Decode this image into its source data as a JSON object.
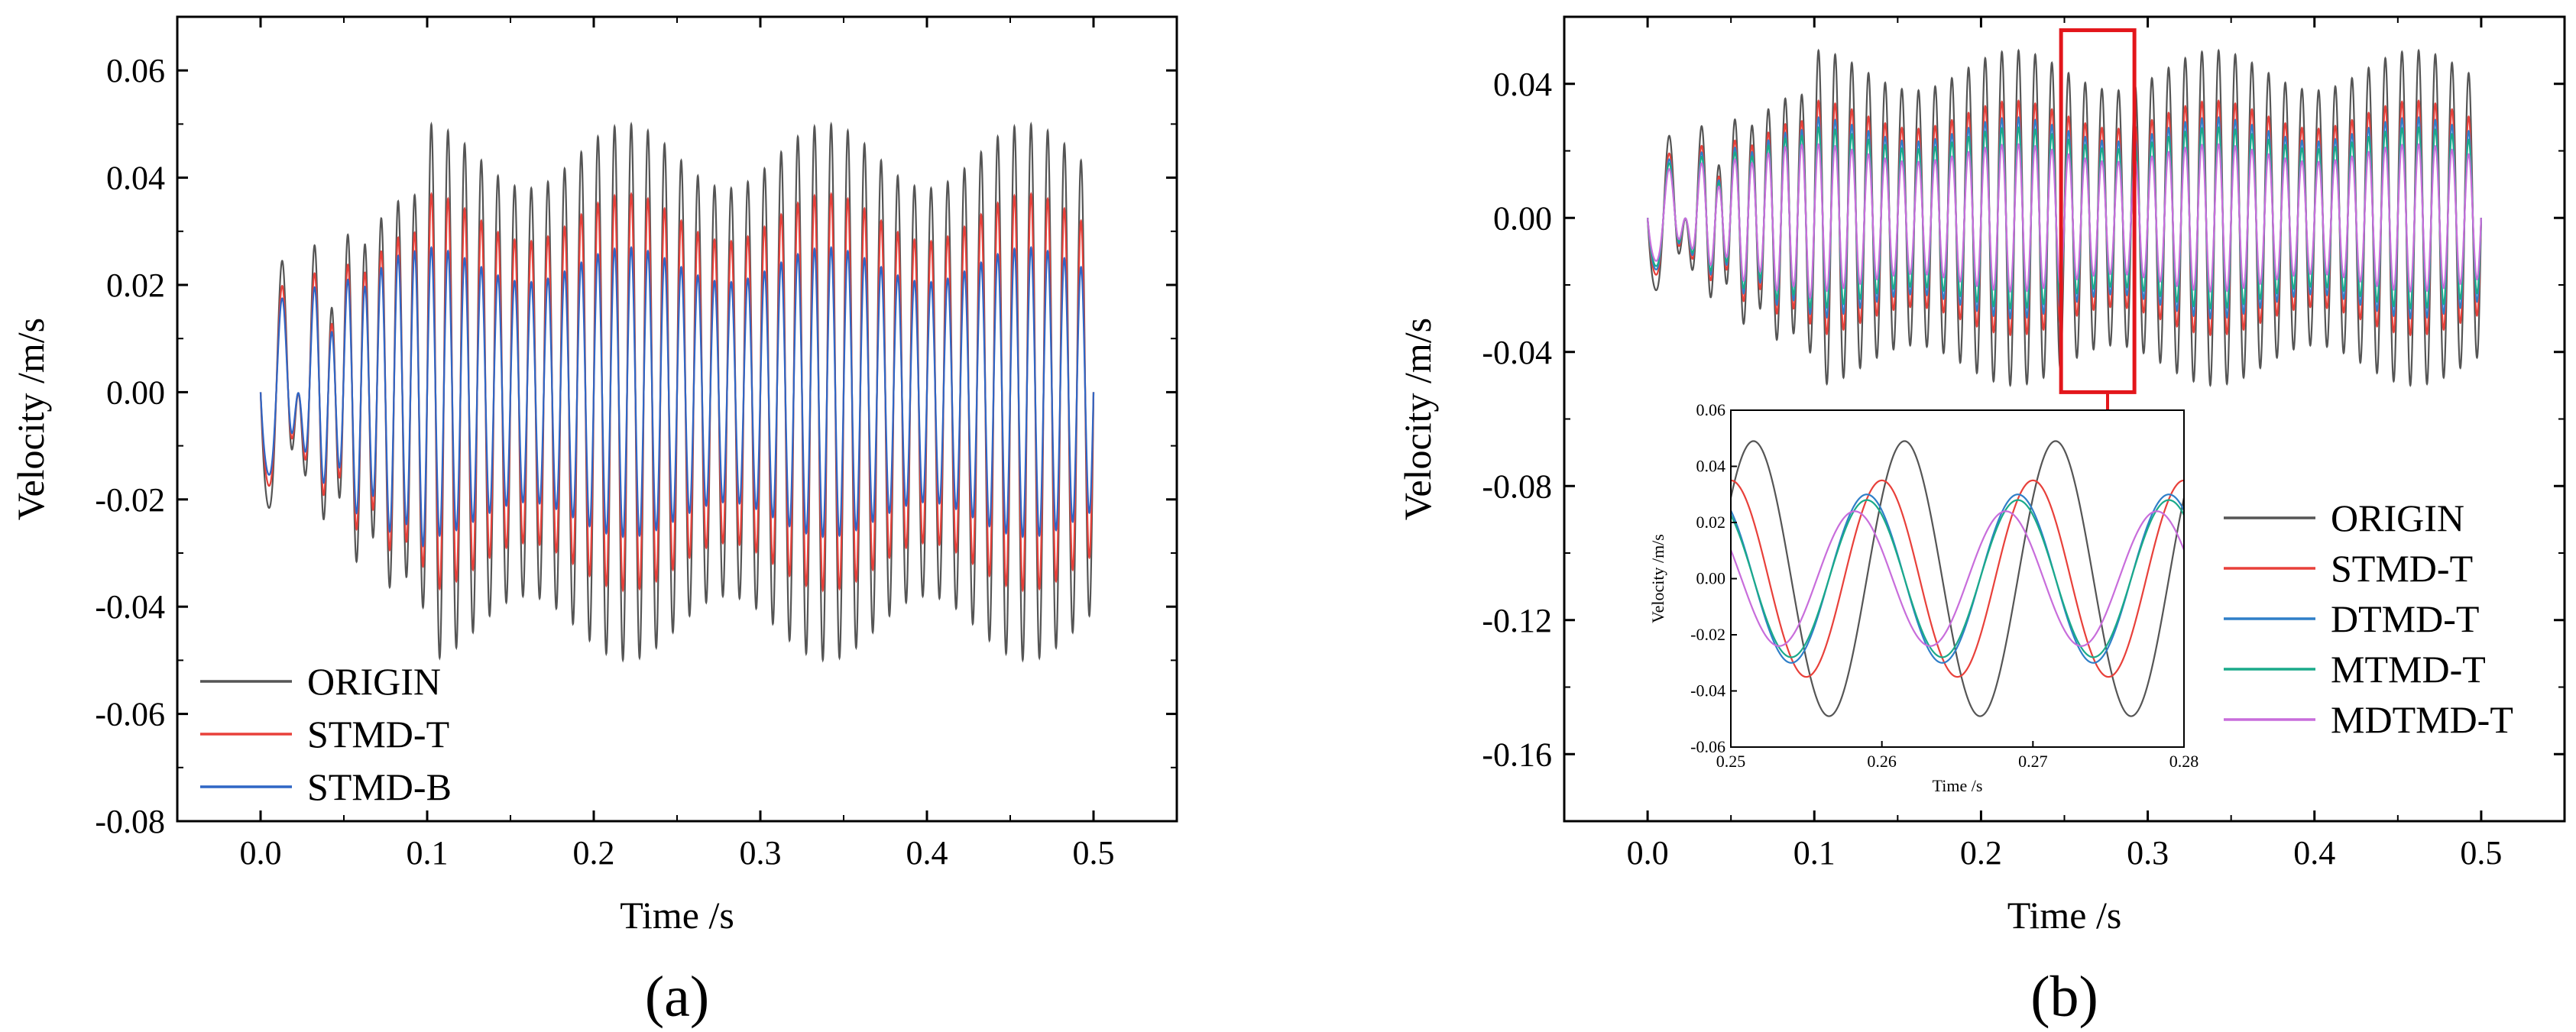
{
  "chart_data": [
    {
      "type": "line",
      "panel_label": "(a)",
      "xlabel": "Time /s",
      "ylabel": "Velocity /m/s",
      "xlim": [
        -0.05,
        0.55
      ],
      "ylim": [
        -0.08,
        0.07
      ],
      "xticks": [
        "0.0",
        "0.1",
        "0.2",
        "0.3",
        "0.4",
        "0.5"
      ],
      "yticks": [
        "-0.08",
        "-0.06",
        "-0.04",
        "-0.02",
        "0.00",
        "0.02",
        "0.04",
        "0.06"
      ],
      "legend_position": "bottom-left",
      "signal": {
        "frequency_hz": 100,
        "t_end": 0.5,
        "buildup_end": 0.1
      },
      "series": [
        {
          "name": "ORIGIN",
          "color": "#555555",
          "peak_amplitude": 0.05,
          "buildup_amplitude": 0.042
        },
        {
          "name": "STMD-T",
          "color": "#e8403a",
          "peak_amplitude": 0.037,
          "buildup_amplitude": 0.034
        },
        {
          "name": "STMD-B",
          "color": "#2f66c5",
          "peak_amplitude": 0.027,
          "buildup_amplitude": 0.03
        }
      ]
    },
    {
      "type": "line",
      "panel_label": "(b)",
      "xlabel": "Time /s",
      "ylabel": "Velocity /m/s",
      "xlim": [
        -0.05,
        0.55
      ],
      "ylim": [
        -0.18,
        0.06
      ],
      "xticks": [
        "0.0",
        "0.1",
        "0.2",
        "0.3",
        "0.4",
        "0.5"
      ],
      "yticks": [
        "-0.16",
        "-0.12",
        "-0.08",
        "-0.04",
        "0.00",
        "0.04"
      ],
      "legend_position": "bottom-right",
      "signal": {
        "frequency_hz": 100,
        "t_end": 0.5,
        "buildup_end": 0.1
      },
      "highlight_box": {
        "x": [
          0.248,
          0.292
        ],
        "y": [
          -0.052,
          0.056
        ]
      },
      "series": [
        {
          "name": "ORIGIN",
          "color": "#555555",
          "peak_amplitude": 0.05,
          "buildup_amplitude": 0.042
        },
        {
          "name": "STMD-T",
          "color": "#e8403a",
          "peak_amplitude": 0.035,
          "buildup_amplitude": 0.033
        },
        {
          "name": "DTMD-T",
          "color": "#2f7fc8",
          "peak_amplitude": 0.03,
          "buildup_amplitude": 0.03
        },
        {
          "name": "MTMD-T",
          "color": "#1aaa8a",
          "peak_amplitude": 0.027,
          "buildup_amplitude": 0.028
        },
        {
          "name": "MDTMD-T",
          "color": "#c86ddb",
          "peak_amplitude": 0.022,
          "buildup_amplitude": 0.025
        }
      ],
      "inset": {
        "xlabel": "Time /s",
        "ylabel": "Velocity /m/s",
        "xlim": [
          0.25,
          0.28
        ],
        "ylim": [
          -0.06,
          0.06
        ],
        "xticks": [
          "0.25",
          "0.26",
          "0.27",
          "0.28"
        ],
        "yticks": [
          "-0.06",
          "-0.04",
          "-0.02",
          "0.00",
          "0.02",
          "0.04",
          "0.06"
        ],
        "series": [
          {
            "name": "ORIGIN",
            "color": "#555555",
            "amplitude": 0.049,
            "phase_shift_s": 0.0
          },
          {
            "name": "STMD-T",
            "color": "#e8403a",
            "amplitude": 0.035,
            "phase_shift_s": -0.0015
          },
          {
            "name": "DTMD-T",
            "color": "#2f7fc8",
            "amplitude": 0.03,
            "phase_shift_s": -0.0025
          },
          {
            "name": "MTMD-T",
            "color": "#1aaa8a",
            "amplitude": 0.028,
            "phase_shift_s": -0.0025
          },
          {
            "name": "MDTMD-T",
            "color": "#c86ddb",
            "amplitude": 0.024,
            "phase_shift_s": -0.0033
          }
        ]
      }
    }
  ]
}
